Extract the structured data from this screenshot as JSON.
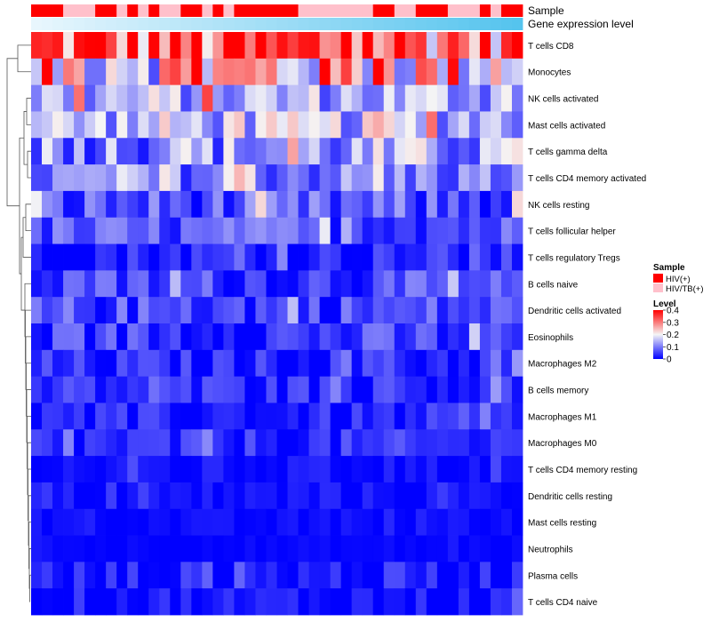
{
  "chart_data": {
    "type": "heatmap",
    "title": "",
    "top_annotations": [
      {
        "name": "Sample"
      },
      {
        "name": "Gene expression level"
      }
    ],
    "rows": [
      "T cells CD8",
      "Monocytes",
      "NK cells activated",
      "Mast cells activated",
      "T cells gamma delta",
      "T cells CD4 memory activated",
      "NK cells resting",
      "T cells follicular helper",
      "T cells regulatory  Tregs",
      "B cells naive",
      "Dendritic cells activated",
      "Eosinophils",
      "Macrophages M2",
      "B cells memory",
      "Macrophages M1",
      "Macrophages M0",
      "T cells CD4 memory resting",
      "Dendritic cells resting",
      "Mast cells resting",
      "Neutrophils",
      "Plasma cells",
      "T cells CD4 naive"
    ],
    "n_samples": 46,
    "sample_groups": [
      "HIV(+)",
      "HIV(+)",
      "HIV(+)",
      "HIV/TB(+)",
      "HIV/TB(+)",
      "HIV/TB(+)",
      "HIV(+)",
      "HIV(+)",
      "HIV/TB(+)",
      "HIV(+)",
      "HIV/TB(+)",
      "HIV(+)",
      "HIV/TB(+)",
      "HIV/TB(+)",
      "HIV(+)",
      "HIV(+)",
      "HIV/TB(+)",
      "HIV(+)",
      "HIV/TB(+)",
      "HIV(+)",
      "HIV(+)",
      "HIV(+)",
      "HIV(+)",
      "HIV(+)",
      "HIV(+)",
      "HIV/TB(+)",
      "HIV/TB(+)",
      "HIV/TB(+)",
      "HIV/TB(+)",
      "HIV/TB(+)",
      "HIV/TB(+)",
      "HIV/TB(+)",
      "HIV(+)",
      "HIV(+)",
      "HIV/TB(+)",
      "HIV/TB(+)",
      "HIV(+)",
      "HIV(+)",
      "HIV(+)",
      "HIV/TB(+)",
      "HIV/TB(+)",
      "HIV/TB(+)",
      "HIV(+)",
      "HIV/TB(+)",
      "HIV(+)",
      "HIV(+)"
    ],
    "row_means": [
      0.32,
      0.24,
      0.14,
      0.15,
      0.12,
      0.1,
      0.06,
      0.065,
      0.03,
      0.05,
      0.055,
      0.045,
      0.03,
      0.035,
      0.02,
      0.03,
      0.012,
      0.012,
      0.006,
      0.004,
      0.018,
      0.015
    ],
    "row_spreads": [
      0.11,
      0.12,
      0.06,
      0.06,
      0.07,
      0.05,
      0.05,
      0.04,
      0.03,
      0.04,
      0.04,
      0.04,
      0.03,
      0.03,
      0.03,
      0.03,
      0.015,
      0.015,
      0.01,
      0.006,
      0.03,
      0.025
    ],
    "legend_sample": {
      "title": "Sample",
      "items": [
        {
          "label": "HIV(+)",
          "color": "#ff0000"
        },
        {
          "label": "HIV/TB(+)",
          "color": "#ffc0cb"
        }
      ]
    },
    "legend_level": {
      "title": "Level",
      "ticks": [
        "0.4",
        "0.3",
        "0.2",
        "0.1",
        "0"
      ],
      "range": [
        0,
        0.4
      ]
    },
    "colors": {
      "low": "#0000ff",
      "mid": "#f5f5f5",
      "high": "#ff0000",
      "expr_start": "#e8f6fd",
      "expr_end": "#55c4ee"
    }
  }
}
